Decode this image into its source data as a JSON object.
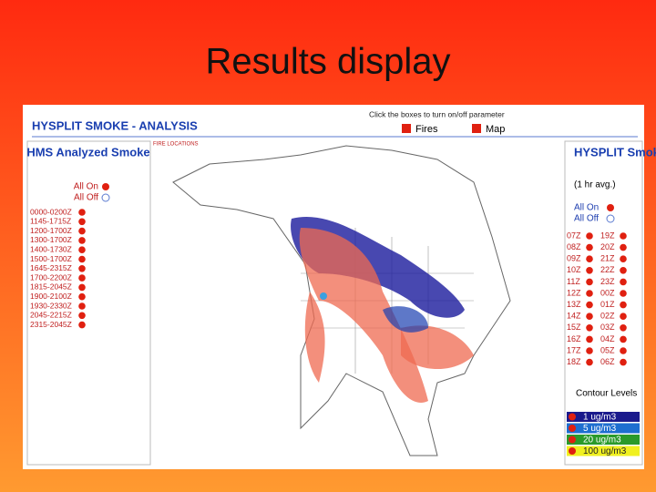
{
  "slide_title": "Results display",
  "app": {
    "title": "HYSPLIT SMOKE - ANALYSIS",
    "instruction": "Click the boxes to turn on/off parameter",
    "toggles": [
      "Fires",
      "Map"
    ],
    "left_panel": {
      "title": "HMS Analyzed Smoke",
      "all_on": "All On",
      "all_off": "All Off",
      "fire_locations": "FIRE LOCATIONS",
      "times": [
        "0000-0200Z",
        "1145-1715Z",
        "1200-1700Z",
        "1300-1700Z",
        "1400-1730Z",
        "1500-1700Z",
        "1645-2315Z",
        "1700-2200Z",
        "1815-2045Z",
        "1900-2100Z",
        "1930-2330Z",
        "2045-2215Z",
        "2315-2045Z"
      ]
    },
    "right_panel": {
      "title": "HYSPLIT Smoke",
      "subtitle": "(1 hr avg.)",
      "all_on": "All On",
      "all_off": "All Off",
      "hours_left": [
        "07Z",
        "08Z",
        "09Z",
        "10Z",
        "11Z",
        "12Z",
        "13Z",
        "14Z",
        "15Z",
        "16Z",
        "17Z",
        "18Z"
      ],
      "hours_right": [
        "19Z",
        "20Z",
        "21Z",
        "22Z",
        "23Z",
        "00Z",
        "01Z",
        "02Z",
        "03Z",
        "04Z",
        "05Z",
        "06Z"
      ],
      "contour_title": "Contour Levels",
      "levels": [
        {
          "label": "1 ug/m3",
          "color": "#1a1a8c"
        },
        {
          "label": "5 ug/m3",
          "color": "#1e6fd0"
        },
        {
          "label": "20 ug/m3",
          "color": "#2a9a2a"
        },
        {
          "label": "100 ug/m3",
          "color": "#f0f020"
        }
      ]
    }
  }
}
